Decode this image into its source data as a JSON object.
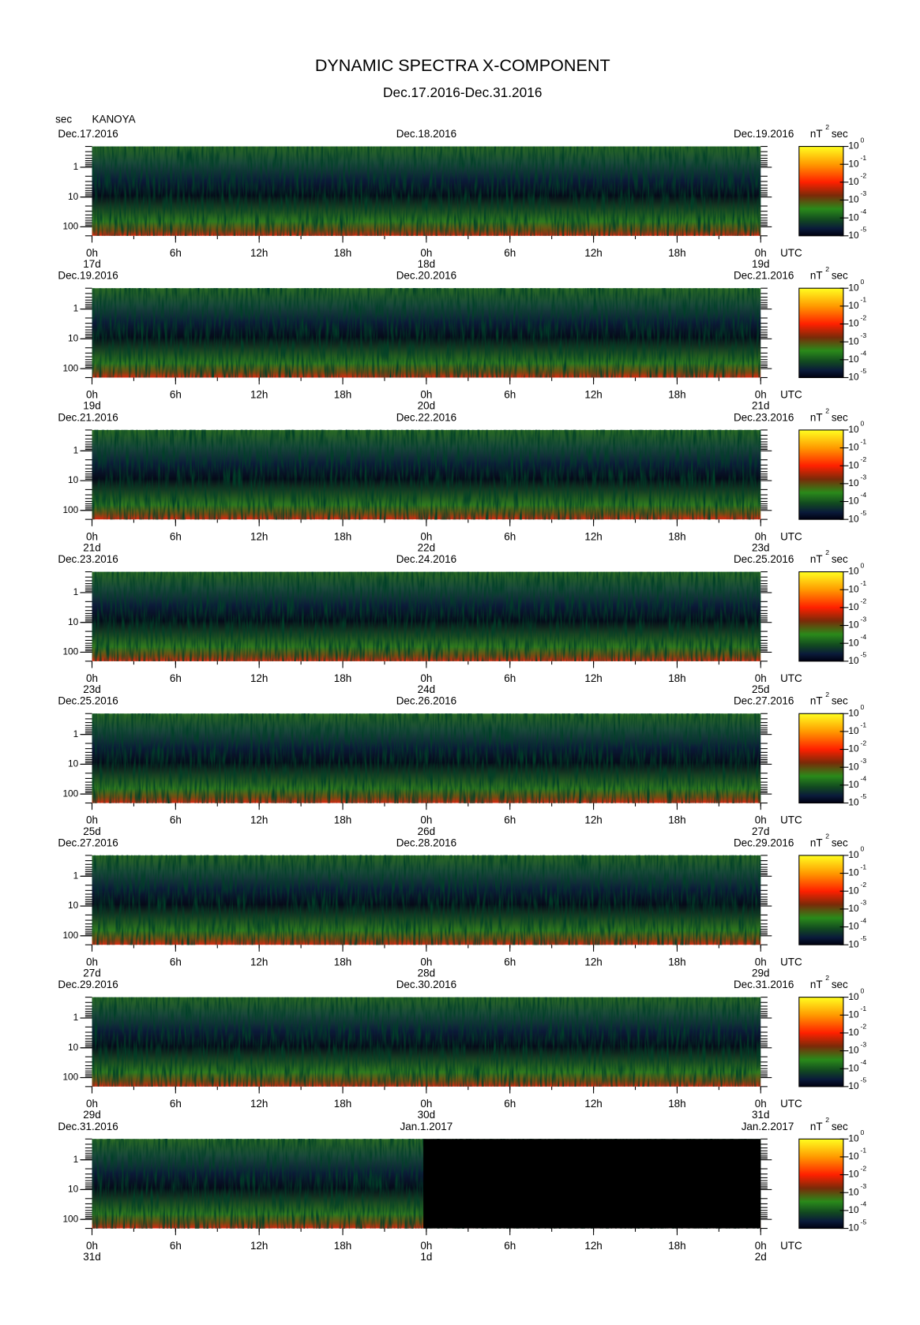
{
  "chart_data": {
    "type": "spectrogram",
    "title": "DYNAMIC SPECTRA X-COMPONENT",
    "subtitle": "Dec.17.2016-Dec.31.2016",
    "y_unit": "sec",
    "station": "KANOYA",
    "yscale": "log",
    "ylim": [
      0.2,
      200
    ],
    "yticks": [
      1,
      10,
      100
    ],
    "xlim": [
      0,
      48
    ],
    "xticks": [
      {
        "value": 0,
        "label": "0h"
      },
      {
        "value": 6,
        "label": "6h"
      },
      {
        "value": 12,
        "label": "12h"
      },
      {
        "value": 18,
        "label": "18h"
      },
      {
        "value": 24,
        "label": "0h"
      },
      {
        "value": 30,
        "label": "6h"
      },
      {
        "value": 36,
        "label": "12h"
      },
      {
        "value": 42,
        "label": "18h"
      },
      {
        "value": 48,
        "label": "0h"
      }
    ],
    "x_unit": "UTC",
    "colorbar": {
      "unit": "nT",
      "unit_power": "2",
      "unit_suffix": "sec",
      "base": "10",
      "clim": [
        -5,
        0
      ],
      "exponents": [
        0,
        -1,
        -2,
        -3,
        -4,
        -5
      ]
    },
    "panels": [
      {
        "dates": [
          "Dec.17.2016",
          "Dec.18.2016",
          "Dec.19.2016"
        ],
        "days": [
          "17d",
          "18d",
          "19d"
        ]
      },
      {
        "dates": [
          "Dec.19.2016",
          "Dec.20.2016",
          "Dec.21.2016"
        ],
        "days": [
          "19d",
          "20d",
          "21d"
        ]
      },
      {
        "dates": [
          "Dec.21.2016",
          "Dec.22.2016",
          "Dec.23.2016"
        ],
        "days": [
          "21d",
          "22d",
          "23d"
        ]
      },
      {
        "dates": [
          "Dec.23.2016",
          "Dec.24.2016",
          "Dec.25.2016"
        ],
        "days": [
          "23d",
          "24d",
          "25d"
        ]
      },
      {
        "dates": [
          "Dec.25.2016",
          "Dec.26.2016",
          "Dec.27.2016"
        ],
        "days": [
          "25d",
          "26d",
          "27d"
        ]
      },
      {
        "dates": [
          "Dec.27.2016",
          "Dec.28.2016",
          "Dec.29.2016"
        ],
        "days": [
          "27d",
          "28d",
          "29d"
        ]
      },
      {
        "dates": [
          "Dec.29.2016",
          "Dec.30.2016",
          "Dec.31.2016"
        ],
        "days": [
          "29d",
          "30d",
          "31d"
        ]
      },
      {
        "dates": [
          "Dec.31.2016",
          "Jan.1.2017",
          "Jan.2.2017"
        ],
        "days": [
          "31d",
          "1d",
          "2d"
        ]
      }
    ]
  }
}
